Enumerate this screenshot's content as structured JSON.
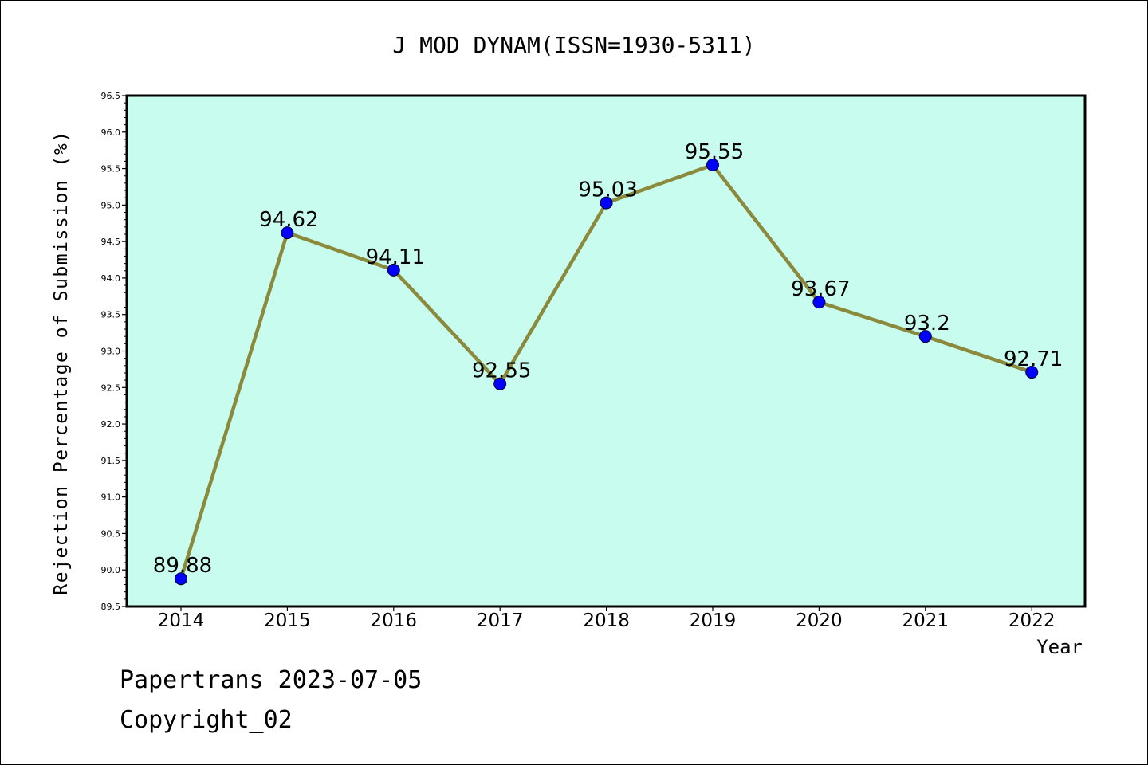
{
  "chart_data": {
    "type": "line",
    "title": "J MOD DYNAM(ISSN=1930-5311)",
    "xlabel": "Year",
    "ylabel": "Rejection Percentage of Submission (%)",
    "categories": [
      "2014",
      "2015",
      "2016",
      "2017",
      "2018",
      "2019",
      "2020",
      "2021",
      "2022"
    ],
    "values": [
      89.88,
      94.62,
      94.11,
      92.55,
      95.03,
      95.55,
      93.67,
      93.2,
      92.71
    ],
    "data_labels": [
      "89.88",
      "94.62",
      "94.11",
      "92.55",
      "95.03",
      "95.55",
      "93.67",
      "93.2",
      "92.71"
    ],
    "ylim": [
      89.5,
      96.5
    ],
    "yticks": [
      "89.5",
      "90.0",
      "90.5",
      "91.0",
      "91.5",
      "92.0",
      "92.5",
      "93.0",
      "93.5",
      "94.0",
      "94.5",
      "95.0",
      "95.5",
      "96.0",
      "96.5"
    ],
    "grid": false,
    "colors": {
      "plot_background": "#c8fcee",
      "line": "#8b8a3c",
      "marker": "#0000ff"
    }
  },
  "footer": {
    "line1": "Papertrans 2023-07-05",
    "line2": "Copyright_02"
  }
}
